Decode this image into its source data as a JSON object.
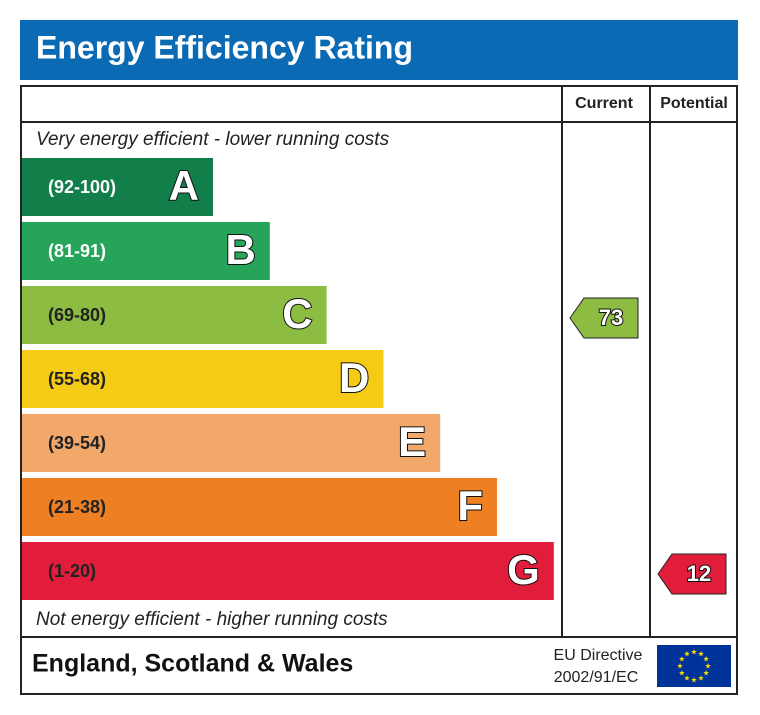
{
  "header": {
    "title": "Energy Efficiency Rating",
    "columns": [
      "Current",
      "Potential"
    ]
  },
  "notes": {
    "top": "Very energy efficient - lower running costs",
    "bottom": "Not energy efficient - higher running costs"
  },
  "bands": [
    {
      "range": "(92-100)",
      "letter": "A",
      "color": "#127f4a",
      "text_color": "#ffffff"
    },
    {
      "range": "(81-91)",
      "letter": "B",
      "color": "#26a55a",
      "text_color": "#ffffff"
    },
    {
      "range": "(69-80)",
      "letter": "C",
      "color": "#8cbc42",
      "text_color": "#222222"
    },
    {
      "range": "(55-68)",
      "letter": "D",
      "color": "#f6cb15",
      "text_color": "#222222"
    },
    {
      "range": "(39-54)",
      "letter": "E",
      "color": "#f2a86b",
      "text_color": "#222222"
    },
    {
      "range": "(21-38)",
      "letter": "F",
      "color": "#ee7f23",
      "text_color": "#222222"
    },
    {
      "range": "(1-20)",
      "letter": "G",
      "color": "#e21d3b",
      "text_color": "#222222"
    }
  ],
  "ratings": {
    "current": "73",
    "potential": "12"
  },
  "footer": {
    "region": "England, Scotland & Wales",
    "directive": [
      "EU Directive",
      "2002/91/EC"
    ]
  }
}
